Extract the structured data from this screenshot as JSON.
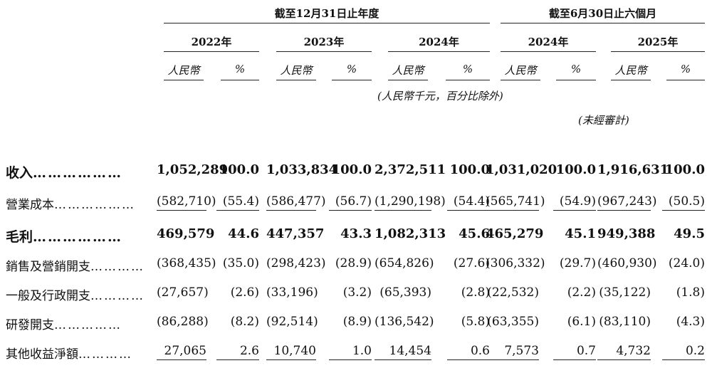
{
  "header": {
    "group1": "截至12月31日止年度",
    "group2": "截至6月30日止六個月",
    "years": [
      "2022年",
      "2023年",
      "2024年",
      "2024年",
      "2025年"
    ],
    "currency_label": "人民幣",
    "percent_label": "%",
    "unit_note": "(人民幣千元，百分比除外)",
    "unaudited_note": "(未經審計)"
  },
  "rows": [
    {
      "label": "收入",
      "dots": "………………",
      "bold": true,
      "values": [
        "1,052,289",
        "100.0",
        "1,033,834",
        "100.0",
        "2,372,511",
        "100.0",
        "1,031,020",
        "100.0",
        "1,916,631",
        "100.0"
      ]
    },
    {
      "label": "營業成本",
      "dots": "………………",
      "bold": false,
      "values": [
        "(582,710)",
        "(55.4)",
        "(586,477)",
        "(56.7)",
        "(1,290,198)",
        "(54.4)",
        "(565,741)",
        "(54.9)",
        "(967,243)",
        "(50.5)"
      ]
    },
    {
      "label": "毛利",
      "dots": "………………",
      "bold": true,
      "values": [
        "469,579",
        "44.6",
        "447,357",
        "43.3",
        "1,082,313",
        "45.6",
        "465,279",
        "45.1",
        "949,388",
        "49.5"
      ]
    },
    {
      "label": "銷售及營銷開支",
      "dots": "…………",
      "bold": false,
      "values": [
        "(368,435)",
        "(35.0)",
        "(298,423)",
        "(28.9)",
        "(654,826)",
        "(27.6)",
        "(306,332)",
        "(29.7)",
        "(460,930)",
        "(24.0)"
      ]
    },
    {
      "label": "一般及行政開支",
      "dots": "…………",
      "bold": false,
      "values": [
        "(27,657)",
        "(2.6)",
        "(33,196)",
        "(3.2)",
        "(65,393)",
        "(2.8)",
        "(22,532)",
        "(2.2)",
        "(35,122)",
        "(1.8)"
      ]
    },
    {
      "label": "研發開支",
      "dots": "……………",
      "bold": false,
      "values": [
        "(86,288)",
        "(8.2)",
        "(92,514)",
        "(8.9)",
        "(136,542)",
        "(5.8)",
        "(63,355)",
        "(6.1)",
        "(83,110)",
        "(4.3)"
      ]
    },
    {
      "label": "其他收益淨額",
      "dots": "…………",
      "bold": false,
      "values": [
        "27,065",
        "2.6",
        "10,740",
        "1.0",
        "14,454",
        "0.6",
        "7,573",
        "0.7",
        "4,732",
        "0.2"
      ]
    }
  ]
}
